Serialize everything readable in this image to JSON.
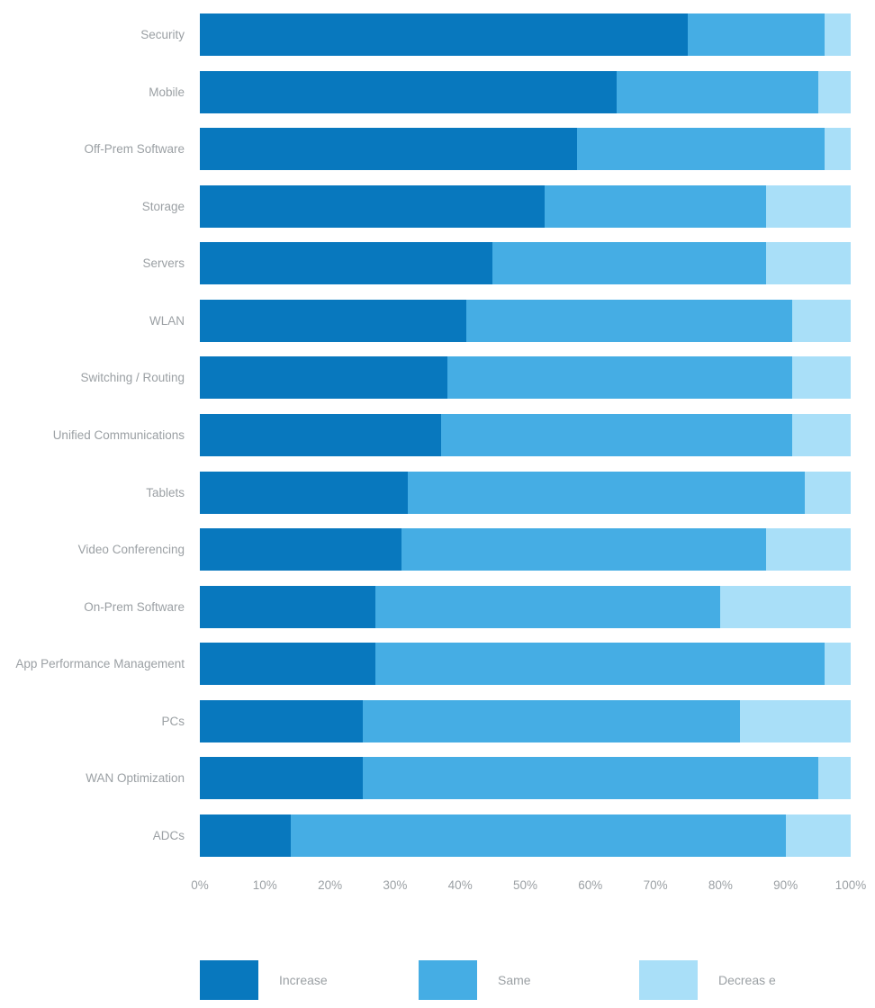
{
  "chart_data": {
    "type": "bar",
    "orientation": "horizontal",
    "stacked": true,
    "title": "",
    "xlabel": "",
    "ylabel": "",
    "grid": false,
    "categories": [
      "Security",
      "Mobile",
      "Off-Prem Software",
      "Storage",
      "Servers",
      "WLAN",
      "Switching / Routing",
      "Unified Communications",
      "Tablets",
      "Video Conferencing",
      "On-Prem Software",
      "App Performance Management",
      "PCs",
      "WAN Optimization",
      "ADCs"
    ],
    "series": [
      {
        "name": "Increase",
        "color": "#0878BE",
        "values": [
          75,
          64,
          58,
          53,
          45,
          41,
          38,
          37,
          32,
          31,
          27,
          27,
          25,
          25,
          14
        ]
      },
      {
        "name": "Same",
        "color": "#45ADE4",
        "values": [
          21,
          31,
          38,
          34,
          42,
          50,
          53,
          54,
          61,
          56,
          53,
          69,
          58,
          70,
          76
        ]
      },
      {
        "name": "Decrease",
        "color": "#A9DFF8",
        "values": [
          4,
          5,
          4,
          13,
          13,
          9,
          9,
          9,
          7,
          13,
          20,
          4,
          17,
          5,
          10
        ]
      }
    ],
    "x_axis": {
      "min": 0,
      "max": 100,
      "tick_labels": [
        "0%",
        "10%",
        "20%",
        "30%",
        "40%",
        "50%",
        "60%",
        "70%",
        "80%",
        "90%",
        "100%"
      ]
    },
    "legend": {
      "position": "bottom",
      "items": [
        {
          "label": "Increase",
          "color": "#0878BE"
        },
        {
          "label": "Same",
          "color": "#45ADE4"
        },
        {
          "label": "Decreas e",
          "color": "#A9DFF8"
        }
      ]
    }
  },
  "layout_colors": {
    "background": "#ffffff",
    "label_text": "#9BA0A4",
    "axis_text": "#9BA0A4"
  }
}
